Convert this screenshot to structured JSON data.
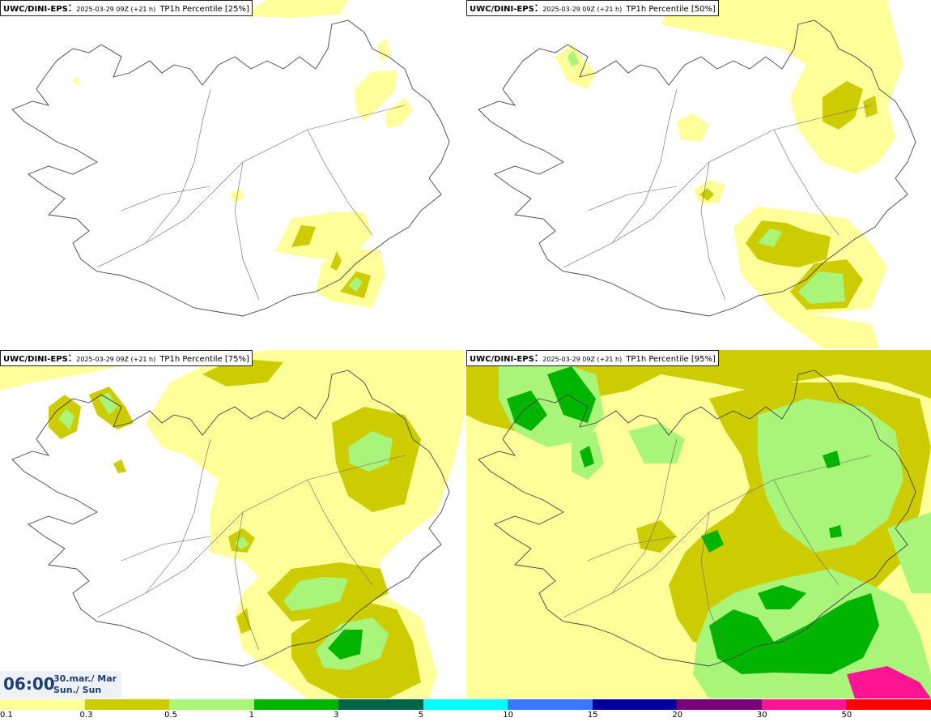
{
  "panels": [
    {
      "model": "UWC/DINI-EPS",
      "meta": "2025-03-29 09Z (+21 h)",
      "field": "TP1h Percentile [25%]",
      "percentile": 25
    },
    {
      "model": "UWC/DINI-EPS",
      "meta": "2025-03-29 09Z (+21 h)",
      "field": "TP1h Percentile [50%]",
      "percentile": 50
    },
    {
      "model": "UWC/DINI-EPS",
      "meta": "2025-03-29 09Z (+21 h)",
      "field": "TP1h Percentile [75%]",
      "percentile": 75
    },
    {
      "model": "UWC/DINI-EPS",
      "meta": "2025-03-29 09Z (+21 h)",
      "field": "TP1h Percentile [95%]",
      "percentile": 95
    }
  ],
  "valid_time": {
    "time": "06:00",
    "date_line1": "30.mar./ Mar",
    "date_line2": "Sun./ Sun"
  },
  "legend": {
    "ticks": [
      "0.1",
      "0.3",
      "0.5",
      "1",
      "3",
      "5",
      "10",
      "15",
      "20",
      "30",
      "50"
    ],
    "colors": [
      "#ffff99",
      "#cccc00",
      "#a8f57a",
      "#00b400",
      "#006446",
      "#00ffff",
      "#3c78ff",
      "#0000a0",
      "#780078",
      "#ff1493",
      "#ff0000"
    ]
  }
}
